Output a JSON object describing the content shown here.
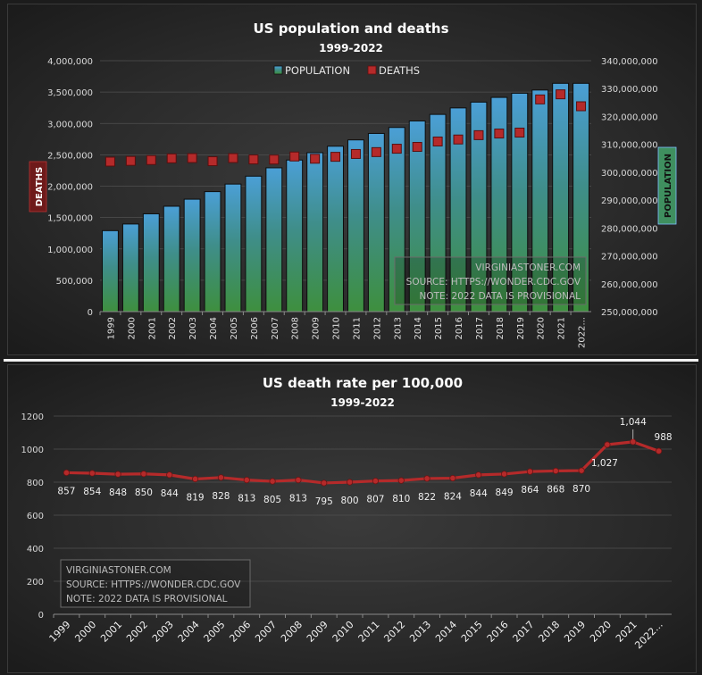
{
  "chart_data": [
    {
      "type": "bar",
      "title": "US population and deaths",
      "subtitle": "1999-2022",
      "categories": [
        "1999",
        "2000",
        "2001",
        "2002",
        "2003",
        "2004",
        "2005",
        "2006",
        "2007",
        "2008",
        "2009",
        "2010",
        "2011",
        "2012",
        "2013",
        "2014",
        "2015",
        "2016",
        "2017",
        "2018",
        "2019",
        "2020",
        "2021",
        "2022..."
      ],
      "series": [
        {
          "name": "POPULATION",
          "type": "bar",
          "axis": "right",
          "values": [
            279040000,
            281420000,
            285080000,
            287800000,
            290330000,
            293040000,
            295750000,
            298590000,
            301580000,
            304370000,
            307010000,
            309330000,
            311590000,
            313910000,
            316060000,
            318390000,
            320740000,
            323070000,
            325150000,
            326840000,
            328330000,
            329480000,
            331890000,
            331890000
          ]
        },
        {
          "name": "DEATHS",
          "type": "marker",
          "axis": "left",
          "values": [
            2391000,
            2403000,
            2416000,
            2443000,
            2448000,
            2398000,
            2448000,
            2426000,
            2424000,
            2473000,
            2437000,
            2468000,
            2513000,
            2543000,
            2597000,
            2626000,
            2712000,
            2744000,
            2813000,
            2839000,
            2854000,
            3383000,
            3464000,
            3274000
          ]
        }
      ],
      "ylabel": "DEATHS",
      "ylabel_right": "POPULATION",
      "ylim": [
        0,
        4000000
      ],
      "yticks": [
        "0",
        "500,000",
        "1,000,000",
        "1,500,000",
        "2,000,000",
        "2,500,000",
        "3,000,000",
        "3,500,000",
        "4,000,000"
      ],
      "ylim_right": [
        250000000,
        340000000
      ],
      "yticks_right": [
        "250,000,000",
        "260,000,000",
        "270,000,000",
        "280,000,000",
        "290,000,000",
        "300,000,000",
        "310,000,000",
        "320,000,000",
        "330,000,000",
        "340,000,000"
      ],
      "legend": "top-center",
      "legend_colors": {
        "POPULATION": "#3f8f5f",
        "DEATHS": "#b52a2a"
      },
      "annotation": [
        "VIRGINIASTONER.COM",
        "SOURCE:  HTTPS://WONDER.CDC.GOV",
        "NOTE:  2022 DATA IS PROVISIONAL"
      ]
    },
    {
      "type": "line",
      "title": "US death rate per 100,000",
      "subtitle": "1999-2022",
      "categories": [
        "1999",
        "2000",
        "2001",
        "2002",
        "2003",
        "2004",
        "2005",
        "2006",
        "2007",
        "2008",
        "2009",
        "2010",
        "2011",
        "2012",
        "2013",
        "2014",
        "2015",
        "2016",
        "2017",
        "2018",
        "2019",
        "2020",
        "2021",
        "2022..."
      ],
      "values": [
        857,
        854,
        848,
        850,
        844,
        819,
        828,
        813,
        805,
        813,
        795,
        800,
        807,
        810,
        822,
        824,
        844,
        849,
        864,
        868,
        870,
        1027,
        1044,
        988
      ],
      "data_labels": [
        "857",
        "854",
        "848",
        "850",
        "844",
        "819",
        "828",
        "813",
        "805",
        "813",
        "795",
        "800",
        "807",
        "810",
        "822",
        "824",
        "844",
        "849",
        "864",
        "868",
        "870",
        "1,027",
        "1,044",
        "988"
      ],
      "ylim": [
        0,
        1200
      ],
      "yticks": [
        "0",
        "200",
        "400",
        "600",
        "800",
        "1000",
        "1200"
      ],
      "line_color": "#b52a2a",
      "annotation": [
        "VIRGINIASTONER.COM",
        "SOURCE:  HTTPS://WONDER.CDC.GOV",
        "NOTE:  2022 DATA IS PROVISIONAL"
      ]
    }
  ]
}
